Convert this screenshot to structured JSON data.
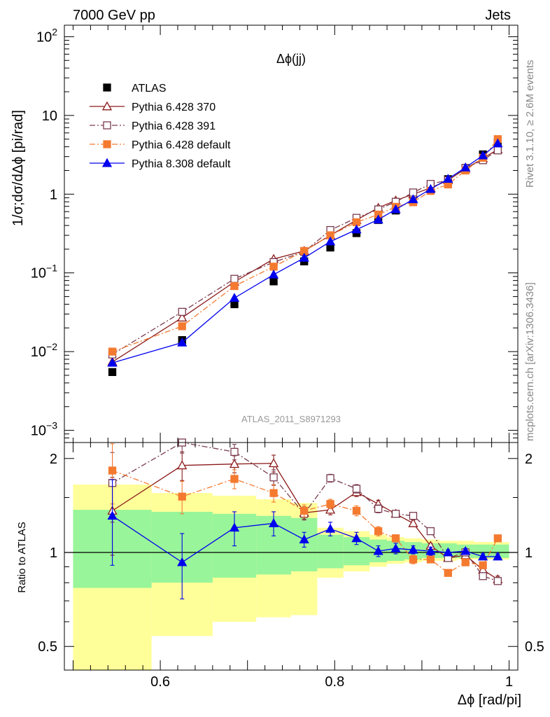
{
  "header": {
    "left": "7000 GeV pp",
    "right": "Jets"
  },
  "side_text": {
    "rivet": "Rivet 3.1.10, ≥ 2.6M events",
    "mcplots": "mcplots.cern.ch [arXiv:1306.3436]"
  },
  "chart_data": [
    {
      "type": "scatter",
      "title": "Δϕ(jj)",
      "analysis_label": "ATLAS_2011_S8971293",
      "ylabel": "1/σ;dσ/dΔϕ [pi/rad]",
      "xlabel": "Δϕ [rad/pi]",
      "yscale": "log",
      "ylim": [
        0.0007,
        140
      ],
      "xlim": [
        0.49,
        1.01
      ],
      "y_ticks": [
        {
          "v": 0.001,
          "base": "10",
          "exp": "−3"
        },
        {
          "v": 0.01,
          "base": "10",
          "exp": "−2"
        },
        {
          "v": 0.1,
          "base": "10",
          "exp": "−1"
        },
        {
          "v": 1,
          "base": "1",
          "exp": ""
        },
        {
          "v": 10,
          "base": "10",
          "exp": ""
        },
        {
          "v": 100,
          "base": "10",
          "exp": "2"
        }
      ],
      "legend_position": "top-left",
      "x": [
        0.545,
        0.625,
        0.685,
        0.73,
        0.765,
        0.795,
        0.825,
        0.85,
        0.87,
        0.89,
        0.91,
        0.93,
        0.95,
        0.97,
        0.987
      ],
      "series": [
        {
          "name": "ATLAS",
          "color": "#000000",
          "marker": "square-filled",
          "line": "none",
          "values": [
            0.0055,
            0.014,
            0.04,
            0.078,
            0.14,
            0.21,
            0.32,
            0.47,
            0.62,
            0.83,
            1.15,
            1.55,
            2.15,
            3.2,
            4.5
          ]
        },
        {
          "name": "Pythia 6.428 370",
          "color": "#8b1a1a",
          "marker": "triangle-open",
          "line": "solid",
          "values": [
            0.0074,
            0.027,
            0.077,
            0.15,
            0.19,
            0.3,
            0.47,
            0.67,
            0.83,
            1.0,
            1.2,
            1.5,
            2.1,
            2.85,
            3.7
          ]
        },
        {
          "name": "Pythia 6.428 391",
          "color": "#7a3b4e",
          "marker": "square-open",
          "line": "dashdot",
          "values": [
            0.0092,
            0.032,
            0.084,
            0.137,
            0.185,
            0.35,
            0.5,
            0.64,
            0.8,
            1.05,
            1.35,
            1.5,
            2.15,
            2.7,
            3.6
          ]
        },
        {
          "name": "Pythia 6.428 default",
          "color": "#f47a30",
          "marker": "square-filled",
          "line": "dashdot",
          "values": [
            0.01,
            0.021,
            0.068,
            0.12,
            0.19,
            0.3,
            0.44,
            0.55,
            0.69,
            0.79,
            1.1,
            1.33,
            2.0,
            2.9,
            5.0
          ]
        },
        {
          "name": "Pythia 8.308 default",
          "color": "#0000ee",
          "marker": "triangle-filled",
          "line": "solid",
          "values": [
            0.0072,
            0.013,
            0.048,
            0.095,
            0.155,
            0.25,
            0.355,
            0.475,
            0.64,
            0.86,
            1.16,
            1.56,
            2.18,
            3.1,
            4.4
          ]
        }
      ]
    },
    {
      "type": "scatter",
      "ylabel": "Ratio to ATLAS",
      "xlabel": "Δϕ [rad/pi]",
      "ylim": [
        0.42,
        2.25
      ],
      "y_ticks": [
        0.5,
        1,
        2
      ],
      "x_ticks": [
        0.6,
        0.8,
        1
      ],
      "x": [
        0.545,
        0.625,
        0.685,
        0.73,
        0.765,
        0.795,
        0.825,
        0.85,
        0.87,
        0.89,
        0.91,
        0.93,
        0.95,
        0.97,
        0.987
      ],
      "bands": {
        "bin_edges": [
          0.5,
          0.59,
          0.66,
          0.71,
          0.75,
          0.78,
          0.81,
          0.84,
          0.86,
          0.88,
          0.9,
          0.92,
          0.94,
          0.96,
          0.98,
          1.0
        ],
        "yellow_low": [
          0.42,
          0.54,
          0.6,
          0.62,
          0.63,
          0.83,
          0.87,
          0.9,
          0.92,
          0.93,
          0.94,
          0.94,
          0.95,
          0.95,
          0.95
        ],
        "yellow_high": [
          1.65,
          1.55,
          1.52,
          1.48,
          1.44,
          1.2,
          1.17,
          1.14,
          1.12,
          1.11,
          1.1,
          1.09,
          1.09,
          1.08,
          1.08
        ],
        "green_low": [
          0.77,
          0.8,
          0.83,
          0.85,
          0.87,
          0.89,
          0.91,
          0.93,
          0.94,
          0.95,
          0.96,
          0.96,
          0.96,
          0.96,
          0.96
        ],
        "green_high": [
          1.37,
          1.35,
          1.33,
          1.31,
          1.29,
          1.14,
          1.12,
          1.1,
          1.09,
          1.08,
          1.07,
          1.07,
          1.06,
          1.06,
          1.06
        ],
        "yellow_color": "#ffff99",
        "green_color": "#99f599"
      },
      "series": [
        {
          "name": "Pythia 6.428 370",
          "color": "#8b1a1a",
          "marker": "triangle-open",
          "line": "solid",
          "values": [
            1.36,
            1.9,
            1.92,
            1.93,
            1.34,
            1.37,
            1.56,
            1.43,
            1.33,
            1.24,
            1.05,
            0.96,
            0.98,
            0.88,
            0.82
          ],
          "err": [
            0.38,
            0.2,
            0.12,
            0.12,
            0.06,
            0.05,
            0.05,
            0.04,
            0.03,
            0.03,
            0.02,
            0.02,
            0.02,
            0.02,
            0.02
          ]
        },
        {
          "name": "Pythia 6.428 391",
          "color": "#7a3b4e",
          "marker": "square-open",
          "line": "dashdot",
          "values": [
            1.67,
            2.28,
            2.1,
            1.74,
            1.33,
            1.73,
            1.6,
            1.38,
            1.33,
            1.31,
            1.17,
            0.96,
            1.0,
            0.84,
            0.81
          ],
          "err": [
            0.42,
            0.2,
            0.12,
            0.1,
            0.06,
            0.05,
            0.05,
            0.04,
            0.03,
            0.03,
            0.02,
            0.02,
            0.02,
            0.02,
            0.02
          ]
        },
        {
          "name": "Pythia 6.428 default",
          "color": "#f47a30",
          "marker": "square-filled",
          "line": "dashdot",
          "values": [
            1.83,
            1.51,
            1.72,
            1.55,
            1.36,
            1.43,
            1.36,
            1.17,
            1.11,
            0.95,
            0.95,
            0.86,
            0.93,
            0.91,
            1.11
          ],
          "err": [
            0.4,
            0.18,
            0.12,
            0.1,
            0.06,
            0.05,
            0.05,
            0.04,
            0.03,
            0.03,
            0.02,
            0.02,
            0.02,
            0.02,
            0.02
          ]
        },
        {
          "name": "Pythia 8.308 default",
          "color": "#0000ee",
          "marker": "triangle-filled",
          "line": "solid",
          "values": [
            1.31,
            0.93,
            1.2,
            1.24,
            1.1,
            1.19,
            1.11,
            1.01,
            1.03,
            1.02,
            1.01,
            1.0,
            1.01,
            0.97,
            0.97
          ],
          "err": [
            0.4,
            0.22,
            0.15,
            0.11,
            0.06,
            0.06,
            0.05,
            0.04,
            0.04,
            0.03,
            0.03,
            0.02,
            0.02,
            0.02,
            0.02
          ]
        }
      ]
    }
  ]
}
